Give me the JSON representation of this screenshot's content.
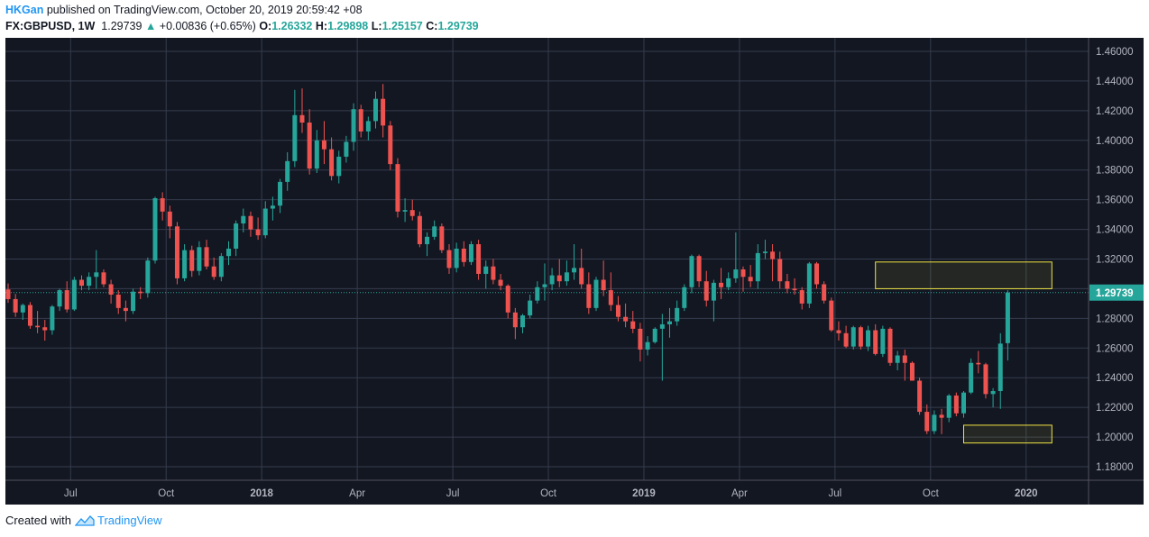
{
  "header": {
    "author": "HKGan",
    "published_text": "published on TradingView.com, October 20, 2019 20:59:42 +08",
    "symbol": "FX:GBPUSD, 1W",
    "last": "1.29739",
    "change_arrow": "▲",
    "change": "+0.00836 (+0.65%)",
    "open_label": "O:",
    "open": "1.26332",
    "high_label": "H:",
    "high": "1.29898",
    "low_label": "L:",
    "low": "1.25157",
    "close_label": "C:",
    "close": "1.29739"
  },
  "footer": {
    "created_with": "Created with",
    "brand": "TradingView"
  },
  "colors": {
    "background": "#131722",
    "grid": "#363c4e",
    "up": "#26a69a",
    "down": "#ef5350",
    "axis_text": "#b2b5be",
    "price_tag": "#26a69a",
    "box": "#f0e442"
  },
  "chart_data": {
    "type": "candlestick",
    "symbol": "FX:GBPUSD",
    "interval": "1W",
    "y_ticks": [
      "1.46000",
      "1.44000",
      "1.42000",
      "1.40000",
      "1.38000",
      "1.36000",
      "1.34000",
      "1.32000",
      "1.30000",
      "1.28000",
      "1.26000",
      "1.24000",
      "1.22000",
      "1.20000",
      "1.18000"
    ],
    "ylim": [
      1.17,
      1.467
    ],
    "x_ticks": [
      "Jul",
      "Oct",
      "2018",
      "Apr",
      "Jul",
      "Oct",
      "2019",
      "Apr",
      "Jul",
      "Oct",
      "2020"
    ],
    "x_tick_weeks": [
      8.5,
      21.5,
      34.5,
      47.5,
      60.5,
      73.5,
      86.5,
      99.5,
      112.5,
      125.5,
      138.5
    ],
    "last_price": 1.29739,
    "last_price_label": "1.29739",
    "candles": [
      [
        1.2995,
        1.3035,
        1.2905,
        1.293
      ],
      [
        1.293,
        1.2965,
        1.281,
        1.284
      ],
      [
        1.284,
        1.29,
        1.279,
        1.289
      ],
      [
        1.289,
        1.291,
        1.273,
        1.275
      ],
      [
        1.275,
        1.285,
        1.27,
        1.274
      ],
      [
        1.274,
        1.279,
        1.265,
        1.272
      ],
      [
        1.272,
        1.289,
        1.269,
        1.288
      ],
      [
        1.288,
        1.3,
        1.285,
        1.299
      ],
      [
        1.299,
        1.305,
        1.284,
        1.286
      ],
      [
        1.286,
        1.308,
        1.285,
        1.306
      ],
      [
        1.306,
        1.309,
        1.299,
        1.302
      ],
      [
        1.302,
        1.311,
        1.299,
        1.308
      ],
      [
        1.308,
        1.326,
        1.3,
        1.311
      ],
      [
        1.311,
        1.313,
        1.301,
        1.303
      ],
      [
        1.303,
        1.306,
        1.29,
        1.296
      ],
      [
        1.296,
        1.299,
        1.283,
        1.287
      ],
      [
        1.287,
        1.292,
        1.278,
        1.285
      ],
      [
        1.285,
        1.3,
        1.283,
        1.298
      ],
      [
        1.298,
        1.301,
        1.293,
        1.297
      ],
      [
        1.297,
        1.321,
        1.294,
        1.319
      ],
      [
        1.319,
        1.362,
        1.317,
        1.361
      ],
      [
        1.361,
        1.365,
        1.346,
        1.352
      ],
      [
        1.352,
        1.356,
        1.334,
        1.342
      ],
      [
        1.342,
        1.345,
        1.303,
        1.307
      ],
      [
        1.307,
        1.33,
        1.305,
        1.326
      ],
      [
        1.326,
        1.329,
        1.308,
        1.312
      ],
      [
        1.312,
        1.332,
        1.309,
        1.328
      ],
      [
        1.328,
        1.333,
        1.313,
        1.315
      ],
      [
        1.315,
        1.321,
        1.306,
        1.308
      ],
      [
        1.308,
        1.324,
        1.305,
        1.322
      ],
      [
        1.322,
        1.332,
        1.316,
        1.327
      ],
      [
        1.327,
        1.346,
        1.322,
        1.344
      ],
      [
        1.344,
        1.354,
        1.338,
        1.349
      ],
      [
        1.349,
        1.352,
        1.335,
        1.34
      ],
      [
        1.34,
        1.348,
        1.333,
        1.336
      ],
      [
        1.336,
        1.359,
        1.334,
        1.354
      ],
      [
        1.354,
        1.362,
        1.346,
        1.356
      ],
      [
        1.356,
        1.374,
        1.351,
        1.372
      ],
      [
        1.372,
        1.392,
        1.366,
        1.386
      ],
      [
        1.386,
        1.434,
        1.382,
        1.417
      ],
      [
        1.417,
        1.435,
        1.405,
        1.412
      ],
      [
        1.412,
        1.421,
        1.377,
        1.381
      ],
      [
        1.381,
        1.407,
        1.378,
        1.4
      ],
      [
        1.4,
        1.413,
        1.384,
        1.394
      ],
      [
        1.394,
        1.402,
        1.373,
        1.376
      ],
      [
        1.376,
        1.393,
        1.371,
        1.389
      ],
      [
        1.389,
        1.403,
        1.385,
        1.399
      ],
      [
        1.399,
        1.425,
        1.393,
        1.421
      ],
      [
        1.421,
        1.424,
        1.402,
        1.406
      ],
      [
        1.406,
        1.416,
        1.4,
        1.413
      ],
      [
        1.413,
        1.433,
        1.408,
        1.428
      ],
      [
        1.428,
        1.438,
        1.402,
        1.41
      ],
      [
        1.41,
        1.413,
        1.38,
        1.384
      ],
      [
        1.384,
        1.388,
        1.348,
        1.352
      ],
      [
        1.352,
        1.361,
        1.345,
        1.353
      ],
      [
        1.353,
        1.36,
        1.346,
        1.349
      ],
      [
        1.349,
        1.352,
        1.328,
        1.33
      ],
      [
        1.33,
        1.338,
        1.322,
        1.335
      ],
      [
        1.335,
        1.346,
        1.333,
        1.342
      ],
      [
        1.342,
        1.344,
        1.324,
        1.326
      ],
      [
        1.326,
        1.33,
        1.31,
        1.314
      ],
      [
        1.314,
        1.331,
        1.311,
        1.327
      ],
      [
        1.327,
        1.332,
        1.315,
        1.318
      ],
      [
        1.318,
        1.332,
        1.316,
        1.33
      ],
      [
        1.33,
        1.333,
        1.306,
        1.31
      ],
      [
        1.31,
        1.319,
        1.3,
        1.315
      ],
      [
        1.315,
        1.32,
        1.303,
        1.306
      ],
      [
        1.306,
        1.31,
        1.299,
        1.302
      ],
      [
        1.302,
        1.303,
        1.28,
        1.284
      ],
      [
        1.284,
        1.287,
        1.266,
        1.274
      ],
      [
        1.274,
        1.283,
        1.27,
        1.282
      ],
      [
        1.282,
        1.296,
        1.28,
        1.292
      ],
      [
        1.292,
        1.305,
        1.29,
        1.301
      ],
      [
        1.301,
        1.317,
        1.292,
        1.303
      ],
      [
        1.303,
        1.314,
        1.299,
        1.309
      ],
      [
        1.309,
        1.32,
        1.301,
        1.305
      ],
      [
        1.305,
        1.319,
        1.302,
        1.311
      ],
      [
        1.311,
        1.33,
        1.306,
        1.314
      ],
      [
        1.314,
        1.327,
        1.3,
        1.303
      ],
      [
        1.303,
        1.311,
        1.283,
        1.287
      ],
      [
        1.287,
        1.308,
        1.285,
        1.306
      ],
      [
        1.306,
        1.319,
        1.295,
        1.299
      ],
      [
        1.299,
        1.311,
        1.285,
        1.289
      ],
      [
        1.289,
        1.295,
        1.278,
        1.281
      ],
      [
        1.281,
        1.29,
        1.274,
        1.278
      ],
      [
        1.278,
        1.285,
        1.27,
        1.273
      ],
      [
        1.273,
        1.277,
        1.251,
        1.259
      ],
      [
        1.259,
        1.268,
        1.255,
        1.264
      ],
      [
        1.264,
        1.274,
        1.263,
        1.273
      ],
      [
        1.273,
        1.283,
        1.238,
        1.276
      ],
      [
        1.276,
        1.287,
        1.267,
        1.278
      ],
      [
        1.278,
        1.292,
        1.275,
        1.287
      ],
      [
        1.287,
        1.303,
        1.285,
        1.301
      ],
      [
        1.301,
        1.323,
        1.297,
        1.322
      ],
      [
        1.322,
        1.323,
        1.301,
        1.305
      ],
      [
        1.305,
        1.312,
        1.288,
        1.292
      ],
      [
        1.292,
        1.306,
        1.278,
        1.304
      ],
      [
        1.304,
        1.314,
        1.293,
        1.301
      ],
      [
        1.301,
        1.311,
        1.299,
        1.307
      ],
      [
        1.307,
        1.338,
        1.304,
        1.313
      ],
      [
        1.313,
        1.315,
        1.298,
        1.308
      ],
      [
        1.308,
        1.316,
        1.301,
        1.305
      ],
      [
        1.305,
        1.33,
        1.3,
        1.324
      ],
      [
        1.324,
        1.333,
        1.32,
        1.325
      ],
      [
        1.325,
        1.33,
        1.305,
        1.32
      ],
      [
        1.32,
        1.325,
        1.3,
        1.305
      ],
      [
        1.305,
        1.31,
        1.297,
        1.3
      ],
      [
        1.3,
        1.307,
        1.296,
        1.299
      ],
      [
        1.299,
        1.301,
        1.286,
        1.29
      ],
      [
        1.29,
        1.318,
        1.287,
        1.317
      ],
      [
        1.317,
        1.318,
        1.3,
        1.303
      ],
      [
        1.303,
        1.305,
        1.29,
        1.292
      ],
      [
        1.292,
        1.294,
        1.271,
        1.272
      ],
      [
        1.272,
        1.278,
        1.265,
        1.27
      ],
      [
        1.27,
        1.275,
        1.26,
        1.261
      ],
      [
        1.261,
        1.275,
        1.259,
        1.274
      ],
      [
        1.274,
        1.275,
        1.259,
        1.261
      ],
      [
        1.261,
        1.275,
        1.258,
        1.272
      ],
      [
        1.272,
        1.276,
        1.255,
        1.256
      ],
      [
        1.256,
        1.275,
        1.254,
        1.273
      ],
      [
        1.273,
        1.274,
        1.248,
        1.25
      ],
      [
        1.25,
        1.258,
        1.245,
        1.255
      ],
      [
        1.255,
        1.259,
        1.238,
        1.25
      ],
      [
        1.25,
        1.251,
        1.238,
        1.238
      ],
      [
        1.238,
        1.24,
        1.215,
        1.217
      ],
      [
        1.217,
        1.222,
        1.202,
        1.204
      ],
      [
        1.204,
        1.218,
        1.202,
        1.215
      ],
      [
        1.215,
        1.219,
        1.202,
        1.213
      ],
      [
        1.213,
        1.229,
        1.21,
        1.228
      ],
      [
        1.228,
        1.23,
        1.214,
        1.216
      ],
      [
        1.216,
        1.231,
        1.213,
        1.23
      ],
      [
        1.23,
        1.253,
        1.229,
        1.25
      ],
      [
        1.25,
        1.258,
        1.243,
        1.249
      ],
      [
        1.249,
        1.25,
        1.226,
        1.229
      ],
      [
        1.229,
        1.233,
        1.22,
        1.231
      ],
      [
        1.231,
        1.27,
        1.219,
        1.263
      ],
      [
        1.2633,
        1.299,
        1.2516,
        1.2974
      ]
    ],
    "annotations": [
      {
        "type": "rectangle",
        "x_start_week": 118,
        "x_end_week": 142,
        "y_top": 1.318,
        "y_bottom": 1.3
      },
      {
        "type": "rectangle",
        "x_start_week": 130,
        "x_end_week": 142,
        "y_top": 1.208,
        "y_bottom": 1.196
      }
    ]
  }
}
